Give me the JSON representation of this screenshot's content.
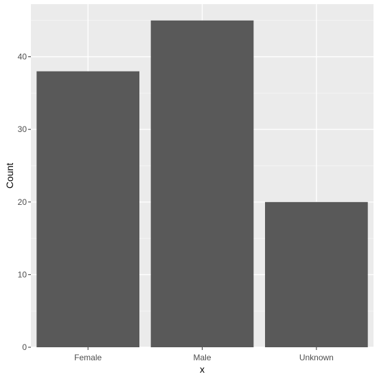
{
  "chart_data": {
    "type": "bar",
    "title": "",
    "xlabel": "x",
    "ylabel": "Count",
    "categories": [
      "Female",
      "Male",
      "Unknown"
    ],
    "values": [
      38,
      45,
      20
    ],
    "ylim": [
      0,
      47.25
    ],
    "yticks": [
      0,
      10,
      20,
      30,
      40
    ],
    "grid": true,
    "legend": "none",
    "colors": {
      "bar": "#595959",
      "panel": "#ebebeb",
      "grid_major": "#ffffff",
      "grid_minor": "#f4f4f4",
      "tick_text": "#4d4d4d",
      "axis_title": "#000000"
    }
  }
}
